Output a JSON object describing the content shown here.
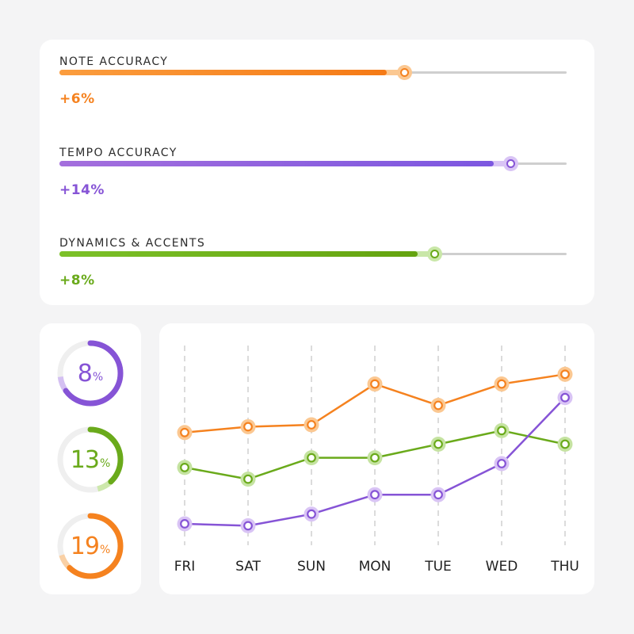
{
  "colors": {
    "orange": "#f5821f",
    "orange_light": "#fbc892",
    "purple": "#8654d6",
    "purple_light": "#d9c4f5",
    "green": "#6aaa1b",
    "green_light": "#c9e7a8",
    "track": "#cfcfcf",
    "grid": "#c8c8c8"
  },
  "skills": [
    {
      "label": "NOTE ACCURACY",
      "delta": "+6%",
      "value": 0.68,
      "color_key": "orange",
      "gradient": [
        "#fb9d3e",
        "#f57a15"
      ]
    },
    {
      "label": "TEMPO ACCURACY",
      "delta": "+14%",
      "value": 0.89,
      "color_key": "purple",
      "gradient": [
        "#a46fdd",
        "#7c57e0"
      ]
    },
    {
      "label": "DYNAMICS & ACCENTS",
      "delta": "+8%",
      "value": 0.74,
      "color_key": "green",
      "gradient": [
        "#7cc128",
        "#64a30f"
      ]
    }
  ],
  "rings": [
    {
      "number": "8",
      "unit": "%",
      "progress": 0.65,
      "color": "#8654d6",
      "light": "#d4c0f2"
    },
    {
      "number": "13",
      "unit": "%",
      "progress": 0.38,
      "color": "#6aaa1b",
      "light": "#cde8ac"
    },
    {
      "number": "19",
      "unit": "%",
      "progress": 0.62,
      "color": "#f5821f",
      "light": "#f9d0a5"
    }
  ],
  "chart_data": {
    "type": "line",
    "categories": [
      "FRI",
      "SAT",
      "SUN",
      "MON",
      "TUE",
      "WED",
      "THU"
    ],
    "ylim": [
      0,
      100
    ],
    "grid": "vertical-dashed",
    "series": [
      {
        "color": "#f5821f",
        "light": "#fbc892",
        "values": [
          56,
          59,
          60,
          81,
          70,
          81,
          86
        ]
      },
      {
        "color": "#6aaa1b",
        "light": "#c5e3a1",
        "values": [
          38,
          32,
          43,
          43,
          50,
          57,
          50
        ]
      },
      {
        "color": "#8654d6",
        "light": "#d9c4f5",
        "values": [
          9,
          8,
          14,
          24,
          24,
          40,
          74
        ]
      }
    ]
  }
}
